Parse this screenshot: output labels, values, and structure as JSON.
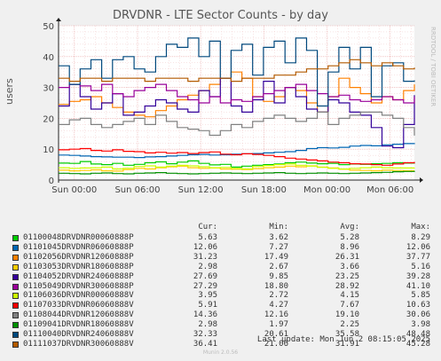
{
  "title": "DRVDNR - LTE Sector Counts - by day",
  "vlabel": "users",
  "side_label": "RRDTOOL / TOBI OETIKER",
  "legend_headers": {
    "cur": "Cur:",
    "min": "Min:",
    "avg": "Avg:",
    "max": "Max:"
  },
  "last_update": "Last update: Mon Jun  2 08:15:05 2025",
  "munin_version": "Munin 2.0.56",
  "chart_data": {
    "type": "line",
    "title": "DRVDNR - LTE Sector Counts - by day",
    "ylabel": "users",
    "ylim": [
      0,
      50
    ],
    "yticks": [
      0,
      10,
      20,
      30,
      40,
      50
    ],
    "xticks": [
      "Sun 00:00",
      "Sun 06:00",
      "Sun 12:00",
      "Sun 18:00",
      "Mon 00:00",
      "Mon 06:00"
    ],
    "xrange_hours": [
      -1.5,
      32.3
    ],
    "grid": true,
    "series": [
      {
        "name": "01100048DRVDNR00060888P",
        "color": "#00cc00",
        "cur": "5.63",
        "min": "3.62",
        "avg": "5.28",
        "max": "8.29",
        "values": [
          5.5,
          5.4,
          6.0,
          5.2,
          5.0,
          5.4,
          4.8,
          5.1,
          5.6,
          5.9,
          5.3,
          5.8,
          6.2,
          5.4,
          4.9,
          5.1,
          4.2,
          4.5,
          4.8,
          5.0,
          5.2,
          5.6,
          5.8,
          5.5,
          5.3,
          5.4,
          5.0,
          5.2,
          5.1,
          5.3,
          5.4,
          5.6,
          5.5,
          5.6
        ]
      },
      {
        "name": "01101045DRVDNR06060888P",
        "color": "#0066b3",
        "cur": "12.06",
        "min": "7.27",
        "avg": "8.96",
        "max": "12.06",
        "values": [
          8.1,
          8.0,
          7.8,
          7.6,
          7.5,
          7.4,
          7.4,
          7.3,
          7.5,
          7.6,
          7.8,
          8.0,
          8.2,
          8.3,
          8.1,
          8.2,
          8.4,
          8.5,
          8.6,
          8.8,
          9.0,
          9.2,
          9.6,
          10.2,
          10.5,
          10.4,
          10.6,
          11.0,
          11.2,
          11.1,
          11.4,
          11.6,
          11.8,
          12.0
        ]
      },
      {
        "name": "01102056DRVDNR12060888P",
        "color": "#ff8000",
        "cur": "31.23",
        "min": "17.49",
        "avg": "26.31",
        "max": "37.77",
        "values": [
          24.5,
          25.5,
          26.0,
          27.0,
          25.0,
          23.5,
          22.0,
          21.0,
          20.5,
          22.5,
          24.0,
          26.0,
          27.5,
          29.0,
          31.0,
          33.0,
          35.0,
          33.0,
          27.0,
          25.5,
          27.0,
          30.0,
          29.0,
          25.0,
          22.0,
          27.0,
          33.0,
          30.0,
          28.0,
          25.0,
          27.0,
          26.0,
          29.0,
          31.0
        ]
      },
      {
        "name": "01103053DRVDNR18060888P",
        "color": "#ffcc00",
        "cur": "2.98",
        "min": "2.67",
        "avg": "3.66",
        "max": "5.16",
        "values": [
          3.2,
          3.0,
          3.1,
          3.3,
          3.0,
          2.9,
          3.4,
          3.8,
          3.6,
          4.0,
          4.3,
          4.5,
          4.0,
          3.8,
          3.9,
          3.6,
          3.5,
          3.4,
          3.7,
          4.0,
          4.2,
          4.5,
          4.3,
          4.6,
          4.2,
          3.9,
          3.5,
          3.2,
          3.1,
          3.0,
          3.2,
          3.1,
          3.0,
          3.0
        ]
      },
      {
        "name": "01104052DRVDNR24060888P",
        "color": "#330099",
        "cur": "27.69",
        "min": "9.85",
        "avg": "23.25",
        "max": "39.28",
        "values": [
          24.0,
          31.0,
          27.0,
          23.0,
          25.0,
          28.0,
          21.0,
          22.0,
          24.0,
          26.0,
          25.0,
          23.0,
          22.0,
          29.0,
          27.0,
          33.0,
          24.0,
          22.0,
          26.0,
          32.0,
          25.0,
          30.0,
          27.0,
          23.0,
          22.0,
          26.0,
          25.0,
          22.0,
          21.0,
          17.0,
          11.0,
          10.5,
          18.0,
          27.5
        ]
      },
      {
        "name": "01105049DRVDNR30060888P",
        "color": "#990099",
        "cur": "27.29",
        "min": "18.80",
        "avg": "28.92",
        "max": "41.10",
        "values": [
          30.0,
          31.0,
          30.5,
          29.0,
          31.0,
          28.0,
          27.0,
          29.0,
          30.0,
          31.0,
          29.0,
          27.0,
          26.0,
          25.0,
          27.0,
          25.0,
          26.0,
          25.5,
          27.0,
          28.0,
          29.0,
          30.0,
          31.0,
          29.0,
          28.0,
          27.0,
          27.5,
          26.0,
          25.5,
          26.0,
          27.0,
          26.0,
          25.0,
          27.0
        ]
      },
      {
        "name": "01106036DRVDNR00060888V",
        "color": "#ccff00",
        "cur": "3.95",
        "min": "2.72",
        "avg": "4.15",
        "max": "5.85",
        "values": [
          4.0,
          3.8,
          3.9,
          4.0,
          4.2,
          3.6,
          3.8,
          4.4,
          4.6,
          4.2,
          4.5,
          4.8,
          4.6,
          4.3,
          4.0,
          4.1,
          3.8,
          3.6,
          4.4,
          4.7,
          5.0,
          5.2,
          4.8,
          4.5,
          4.1,
          3.8,
          3.6,
          3.8,
          4.0,
          4.2,
          4.0,
          3.9,
          3.9,
          4.0
        ]
      },
      {
        "name": "01107033DRVDNR06060888V",
        "color": "#ff0000",
        "cur": "5.91",
        "min": "4.27",
        "avg": "7.67",
        "max": "10.63",
        "values": [
          9.8,
          10.0,
          10.2,
          9.6,
          9.4,
          9.8,
          9.3,
          9.2,
          8.8,
          9.0,
          8.7,
          8.9,
          8.6,
          8.9,
          9.1,
          8.4,
          8.2,
          8.5,
          8.3,
          8.0,
          7.6,
          7.1,
          6.8,
          6.5,
          6.2,
          5.8,
          5.6,
          5.3,
          5.2,
          5.0,
          4.8,
          5.2,
          5.6,
          5.9
        ]
      },
      {
        "name": "01108044DRVDNR12060888V",
        "color": "#808080",
        "cur": "14.36",
        "min": "12.16",
        "avg": "19.10",
        "max": "30.06",
        "values": [
          18.0,
          19.5,
          20.0,
          18.0,
          17.0,
          18.0,
          19.0,
          20.0,
          18.0,
          21.0,
          19.0,
          17.0,
          16.5,
          16.0,
          14.5,
          16.0,
          18.0,
          17.0,
          19.0,
          20.0,
          21.0,
          20.0,
          19.0,
          20.0,
          22.0,
          18.0,
          20.0,
          21.0,
          22.0,
          22.0,
          21.0,
          20.0,
          17.0,
          14.4
        ]
      },
      {
        "name": "01109041DRVDNR18060888V",
        "color": "#008f00",
        "cur": "2.98",
        "min": "1.97",
        "avg": "2.25",
        "max": "3.98",
        "values": [
          2.2,
          2.1,
          2.0,
          2.2,
          2.3,
          2.1,
          2.0,
          2.2,
          2.3,
          2.4,
          2.2,
          2.1,
          2.0,
          2.1,
          2.2,
          2.3,
          2.2,
          2.1,
          2.2,
          2.3,
          2.4,
          2.2,
          2.1,
          2.2,
          2.3,
          2.2,
          2.1,
          2.2,
          2.3,
          2.4,
          2.5,
          2.7,
          2.8,
          3.0
        ]
      },
      {
        "name": "01110040DRVDNR24060888V",
        "color": "#00487d",
        "cur": "32.33",
        "min": "20.61",
        "avg": "35.58",
        "max": "48.48",
        "values": [
          37.0,
          31.0,
          36.0,
          39.0,
          33.0,
          39.0,
          40.0,
          36.0,
          35.0,
          40.0,
          44.0,
          43.0,
          46.0,
          40.0,
          45.0,
          33.0,
          42.0,
          44.0,
          34.0,
          43.0,
          45.0,
          38.0,
          46.0,
          42.0,
          24.0,
          35.0,
          43.0,
          36.0,
          43.0,
          27.0,
          37.0,
          38.0,
          32.0,
          32.3
        ]
      },
      {
        "name": "01111037DRVDNR30060888V",
        "color": "#b35a00",
        "cur": "36.41",
        "min": "21.06",
        "avg": "31.91",
        "max": "45.28",
        "values": [
          33.0,
          32.0,
          33.0,
          33.0,
          32.0,
          33.0,
          33.0,
          33.0,
          32.0,
          33.0,
          33.0,
          33.0,
          32.0,
          33.0,
          33.0,
          33.0,
          32.0,
          33.0,
          33.0,
          33.0,
          34.0,
          34.0,
          35.0,
          36.0,
          36.0,
          37.0,
          38.0,
          39.0,
          38.0,
          37.0,
          38.0,
          37.0,
          36.0,
          36.4
        ]
      }
    ]
  }
}
